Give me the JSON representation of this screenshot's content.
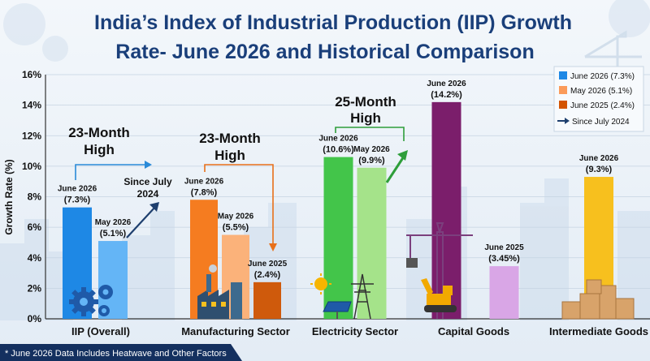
{
  "chart_data": {
    "type": "bar",
    "title_line1": "India’s Index of Industrial Production (IIP) Growth",
    "title_line2": "Rate- June 2026 and Historical Comparison",
    "ylabel": "Growth Rate (%)",
    "ylim": [
      0,
      16
    ],
    "yticks": [
      "0%",
      "2%",
      "4%",
      "6%",
      "8%",
      "10%",
      "12%",
      "14%",
      "16%"
    ],
    "grid": true,
    "legend_position": "top-right",
    "categories": [
      "IIP (Overall)",
      "Manufacturing Sector",
      "Electricity Sector",
      "Capital Goods",
      "Intermediate Goods"
    ],
    "series": [
      {
        "name": "June 2026 (7.3%)",
        "color": "#1e88e5"
      },
      {
        "name": "May 2026 (5.1%)",
        "color": "#fb9b5a"
      },
      {
        "name": "June 2025 (2.4%)",
        "color": "#d35400"
      }
    ],
    "trend_legend": "Since July 2024",
    "bars": [
      {
        "category": 0,
        "value": 7.3,
        "color": "#1e88e5",
        "label1": "June 2026",
        "label2": "(7.3%)"
      },
      {
        "category": 0,
        "value": 5.1,
        "color": "#64b5f6",
        "label1": "May 2026",
        "label2": "(5.1%)"
      },
      {
        "category": 1,
        "value": 7.8,
        "color": "#f57c20",
        "label1": "June 2026",
        "label2": "(7.8%)"
      },
      {
        "category": 1,
        "value": 5.5,
        "color": "#fbb27a",
        "label1": "May 2026",
        "label2": "(5.5%)"
      },
      {
        "category": 1,
        "value": 2.4,
        "color": "#cf5a0c",
        "label1": "June 2025",
        "label2": "(2.4%)"
      },
      {
        "category": 2,
        "value": 10.6,
        "color": "#43c54a",
        "label1": "June 2026",
        "label2": "(10.6%)"
      },
      {
        "category": 2,
        "value": 9.9,
        "color": "#a5e38a",
        "label1": "May 2026",
        "label2": "(9.9%)"
      },
      {
        "category": 3,
        "value": 14.2,
        "color": "#7b1e6b",
        "label1": "June 2026",
        "label2": "(14.2%)"
      },
      {
        "category": 3,
        "value": 3.45,
        "color": "#d9a6e6",
        "label1": "June 2025",
        "label2": "(3.45%)"
      },
      {
        "category": 4,
        "value": 9.3,
        "color": "#f7c01e",
        "label1": "June 2026",
        "label2": "(9.3%)"
      }
    ],
    "annotations": {
      "iip_high1": "23-Month",
      "iip_high2": "High",
      "iip_since1": "Since July",
      "iip_since2": "2024",
      "mfg_high1": "23-Month",
      "mfg_high2": "High",
      "elec_high1": "25-Month",
      "elec_high2": "High"
    },
    "footnote": "* June 2026 Data Includes Heatwave and Other Factors"
  },
  "colors": {
    "title": "#1a3f7a",
    "text": "#111111",
    "footnote_bg": "#14305f"
  }
}
